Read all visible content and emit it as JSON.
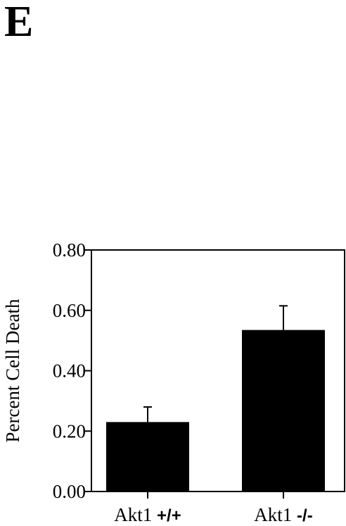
{
  "panel_label": "E",
  "chart_data": {
    "type": "bar",
    "title": "",
    "ylabel": "Percent Cell Death",
    "xlabel": "",
    "ylim": [
      0,
      0.8
    ],
    "yticks": [
      "0.00",
      "0.20",
      "0.40",
      "0.60",
      "0.80"
    ],
    "ytick_values": [
      0,
      0.2,
      0.4,
      0.6,
      0.8
    ],
    "categories": [
      {
        "base": "Akt1 ",
        "genotype": "+/+"
      },
      {
        "base": "Akt1 ",
        "genotype": "-/-"
      }
    ],
    "values": [
      0.23,
      0.535
    ],
    "errors": [
      0.05,
      0.08
    ],
    "bar_color": "#000000",
    "grid": false
  }
}
